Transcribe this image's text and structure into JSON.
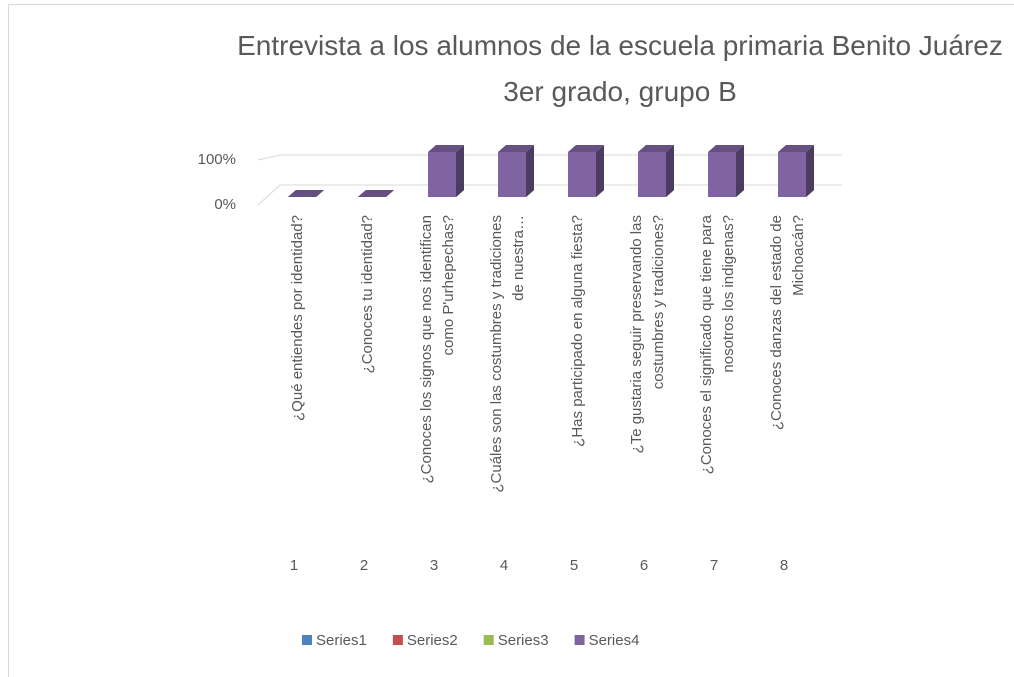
{
  "chart_data": {
    "type": "bar3d",
    "title": "Entrevista a los alumnos de la escuela primaria Benito Juárez 3er grado, grupo B",
    "categories": [
      "1",
      "2",
      "3",
      "4",
      "5",
      "6",
      "7",
      "8"
    ],
    "category_texts": [
      "¿Qué entiendes por identidad?",
      "¿Conoces tu identidad?",
      "¿Conoces los signos que nos identifican como P'urhepechas?",
      "¿Cuáles son las costumbres y tradiciones de nuestra…",
      "¿Has participado en alguna fiesta?",
      "¿Te gustaria seguir preservando las costumbres y tradiciones?",
      "¿Conoces el significado que tiene para nosotros los indigenas?",
      "¿Conoces danzas del estado de Michoacán?"
    ],
    "series": [
      {
        "name": "Series1",
        "color": "#4f81bd",
        "values": [
          0,
          0,
          0,
          0,
          0,
          0,
          0,
          0
        ]
      },
      {
        "name": "Series2",
        "color": "#c0504d",
        "values": [
          0,
          0,
          0,
          0,
          0,
          0,
          0,
          0
        ]
      },
      {
        "name": "Series3",
        "color": "#9bbb59",
        "values": [
          0,
          0,
          0,
          0,
          0,
          0,
          0,
          0
        ]
      },
      {
        "name": "Series4",
        "color": "#8064a2",
        "values": [
          0,
          0,
          100,
          100,
          100,
          100,
          100,
          100
        ]
      }
    ],
    "ylim": [
      0,
      100
    ],
    "yticks": [
      {
        "value": 0,
        "label": "0%"
      },
      {
        "value": 100,
        "label": "100%"
      }
    ],
    "grid": true,
    "legend": "bottom"
  }
}
